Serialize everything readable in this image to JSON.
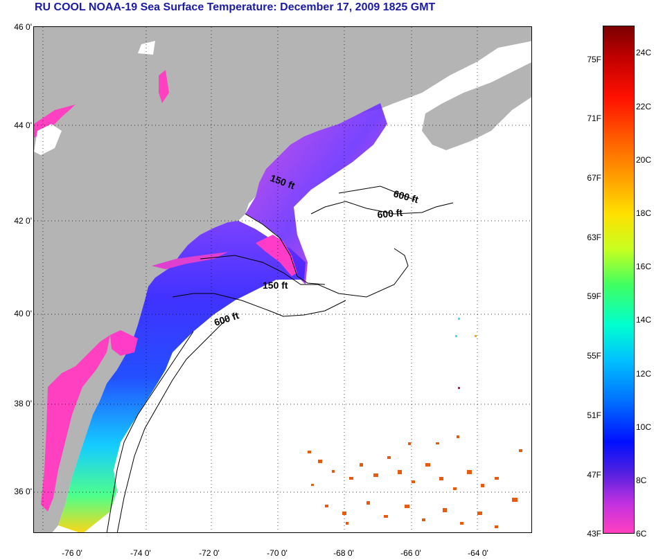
{
  "title": "RU COOL  NOAA-19  Sea Surface Temperature:  December 17, 2009 1825 GMT",
  "lat_labels": [
    "46 0'",
    "44 0'",
    "42 0'",
    "40 0'",
    "38 0'",
    "36 0'"
  ],
  "lon_labels": [
    "-76 0'",
    "-74 0'",
    "-72 0'",
    "-70 0'",
    "-68 0'",
    "-66 0'",
    "-64 0'"
  ],
  "isobath_labels": {
    "gulf_maine_150": "150 ft",
    "gulf_maine_600_a": "600 ft",
    "gulf_maine_600_b": "600 ft",
    "south_shelf_150": "150 ft",
    "south_shelf_600": "600 ft"
  },
  "colorbar": {
    "fahrenheit_labels": [
      "75F",
      "71F",
      "67F",
      "63F",
      "59F",
      "55F",
      "51F",
      "47F",
      "43F"
    ],
    "celsius_labels": [
      "24C",
      "22C",
      "20C",
      "18C",
      "16C",
      "14C",
      "12C",
      "10C",
      "8C",
      "6C"
    ]
  },
  "colors": {
    "title": "#1a1aa6",
    "land": "#b4b4b4",
    "cloud": "#ffffff"
  }
}
